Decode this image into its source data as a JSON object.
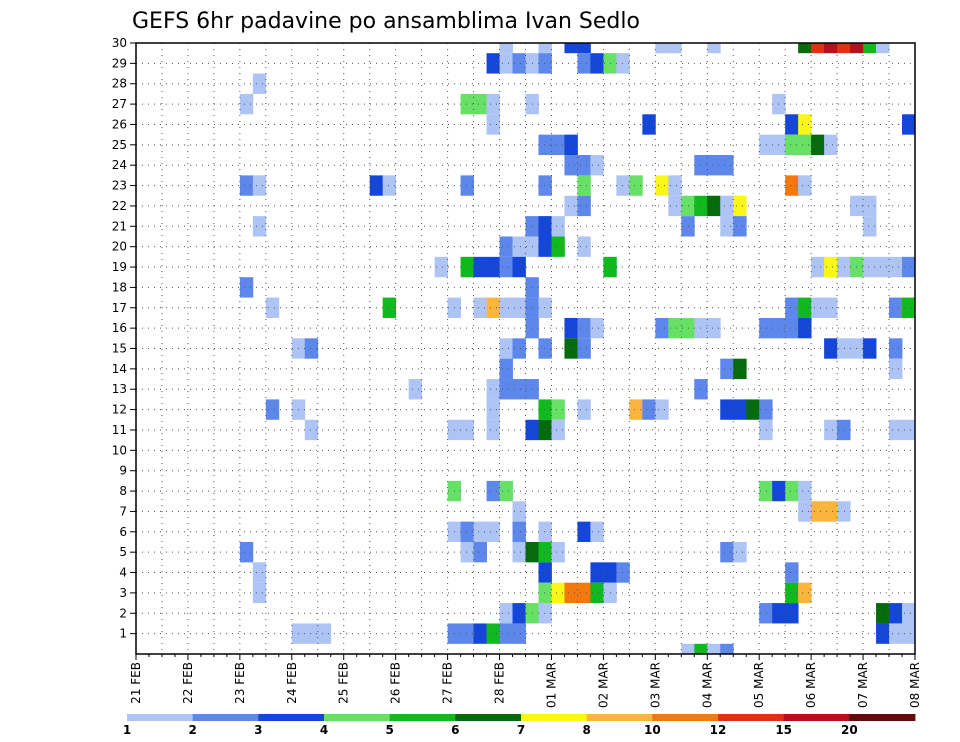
{
  "chart_data": {
    "type": "heatmap",
    "title": "GEFS 6hr padavine po ansamblima Ivan Sedlo",
    "xlabel": "",
    "ylabel": "",
    "x_tick_labels": [
      "21 FEB",
      "22 FEB",
      "23 FEB",
      "24 FEB",
      "25 FEB",
      "26 FEB",
      "27 FEB",
      "28 FEB",
      "01 MAR",
      "02 MAR",
      "03 MAR",
      "04 MAR",
      "05 MAR",
      "06 MAR",
      "07 MAR",
      "08 MAR"
    ],
    "y_tick_labels": [
      "1",
      "2",
      "3",
      "4",
      "5",
      "6",
      "7",
      "8",
      "9",
      "10",
      "11",
      "12",
      "13",
      "14",
      "15",
      "16",
      "17",
      "18",
      "19",
      "20",
      "21",
      "22",
      "23",
      "24",
      "25",
      "26",
      "27",
      "28",
      "29",
      "30"
    ],
    "x_unit": "6-hour step from 21 FEB 00",
    "x_range": [
      0,
      60
    ],
    "y_range": [
      1,
      30
    ],
    "grid": true,
    "color_scale": {
      "levels": [
        "1",
        "2",
        "3",
        "4",
        "5",
        "6",
        "7",
        "8",
        "10",
        "12",
        "15",
        "20"
      ],
      "colors": [
        "#adc4f5",
        "#5d87ea",
        "#1446d9",
        "#66e065",
        "#10b91d",
        "#056b0c",
        "#faf617",
        "#fbb43c",
        "#f3790e",
        "#dc3312",
        "#b5101e",
        "#640a0c"
      ]
    },
    "cells": [
      [
        28,
        30,
        0
      ],
      [
        31,
        30,
        0
      ],
      [
        33,
        30,
        2
      ],
      [
        34,
        30,
        2
      ],
      [
        40,
        30,
        0
      ],
      [
        41,
        30,
        0
      ],
      [
        44,
        30,
        0
      ],
      [
        51,
        30,
        5
      ],
      [
        52,
        30,
        9
      ],
      [
        53,
        30,
        10
      ],
      [
        54,
        30,
        9
      ],
      [
        55,
        30,
        10
      ],
      [
        56,
        30,
        4
      ],
      [
        57,
        30,
        0
      ],
      [
        27,
        29,
        2
      ],
      [
        28,
        29,
        0
      ],
      [
        29,
        29,
        1
      ],
      [
        30,
        29,
        0
      ],
      [
        31,
        29,
        1
      ],
      [
        34,
        29,
        1
      ],
      [
        35,
        29,
        2
      ],
      [
        36,
        29,
        3
      ],
      [
        37,
        29,
        0
      ],
      [
        9,
        28,
        0
      ],
      [
        8,
        27,
        0
      ],
      [
        25,
        27,
        3
      ],
      [
        26,
        27,
        3
      ],
      [
        27,
        27,
        0
      ],
      [
        30,
        27,
        0
      ],
      [
        49,
        27,
        0
      ],
      [
        27,
        26,
        0
      ],
      [
        39,
        26,
        2
      ],
      [
        50,
        26,
        2
      ],
      [
        51,
        26,
        6
      ],
      [
        59,
        26,
        2
      ],
      [
        31,
        25,
        1
      ],
      [
        32,
        25,
        1
      ],
      [
        33,
        25,
        2
      ],
      [
        48,
        25,
        0
      ],
      [
        49,
        25,
        0
      ],
      [
        50,
        25,
        3
      ],
      [
        51,
        25,
        3
      ],
      [
        52,
        25,
        5
      ],
      [
        53,
        25,
        0
      ],
      [
        33,
        24,
        1
      ],
      [
        34,
        24,
        1
      ],
      [
        35,
        24,
        0
      ],
      [
        43,
        24,
        1
      ],
      [
        44,
        24,
        1
      ],
      [
        45,
        24,
        1
      ],
      [
        8,
        23,
        1
      ],
      [
        9,
        23,
        0
      ],
      [
        18,
        23,
        2
      ],
      [
        19,
        23,
        0
      ],
      [
        25,
        23,
        1
      ],
      [
        31,
        23,
        1
      ],
      [
        34,
        23,
        3
      ],
      [
        37,
        23,
        0
      ],
      [
        38,
        23,
        3
      ],
      [
        40,
        23,
        6
      ],
      [
        41,
        23,
        0
      ],
      [
        50,
        23,
        8
      ],
      [
        51,
        23,
        0
      ],
      [
        33,
        22,
        0
      ],
      [
        34,
        22,
        1
      ],
      [
        41,
        22,
        0
      ],
      [
        42,
        22,
        3
      ],
      [
        43,
        22,
        4
      ],
      [
        44,
        22,
        5
      ],
      [
        45,
        22,
        0
      ],
      [
        46,
        22,
        6
      ],
      [
        55,
        22,
        0
      ],
      [
        56,
        22,
        0
      ],
      [
        9,
        21,
        0
      ],
      [
        30,
        21,
        1
      ],
      [
        31,
        21,
        2
      ],
      [
        32,
        21,
        0
      ],
      [
        42,
        21,
        1
      ],
      [
        45,
        21,
        0
      ],
      [
        46,
        21,
        1
      ],
      [
        56,
        21,
        0
      ],
      [
        28,
        20,
        1
      ],
      [
        29,
        20,
        0
      ],
      [
        30,
        20,
        0
      ],
      [
        31,
        20,
        2
      ],
      [
        32,
        20,
        4
      ],
      [
        34,
        20,
        0
      ],
      [
        23,
        19,
        0
      ],
      [
        25,
        19,
        4
      ],
      [
        26,
        19,
        2
      ],
      [
        27,
        19,
        2
      ],
      [
        28,
        19,
        1
      ],
      [
        29,
        19,
        2
      ],
      [
        36,
        19,
        4
      ],
      [
        52,
        19,
        0
      ],
      [
        53,
        19,
        6
      ],
      [
        54,
        19,
        0
      ],
      [
        55,
        19,
        3
      ],
      [
        56,
        19,
        0
      ],
      [
        57,
        19,
        0
      ],
      [
        58,
        19,
        0
      ],
      [
        59,
        19,
        1
      ],
      [
        8,
        18,
        1
      ],
      [
        30,
        18,
        1
      ],
      [
        10,
        17,
        0
      ],
      [
        19,
        17,
        4
      ],
      [
        24,
        17,
        0
      ],
      [
        26,
        17,
        0
      ],
      [
        27,
        17,
        7
      ],
      [
        28,
        17,
        0
      ],
      [
        29,
        17,
        0
      ],
      [
        30,
        17,
        1
      ],
      [
        31,
        17,
        0
      ],
      [
        50,
        17,
        1
      ],
      [
        51,
        17,
        4
      ],
      [
        52,
        17,
        0
      ],
      [
        53,
        17,
        0
      ],
      [
        58,
        17,
        1
      ],
      [
        59,
        17,
        4
      ],
      [
        30,
        16,
        1
      ],
      [
        33,
        16,
        2
      ],
      [
        34,
        16,
        1
      ],
      [
        35,
        16,
        0
      ],
      [
        40,
        16,
        1
      ],
      [
        41,
        16,
        3
      ],
      [
        42,
        16,
        3
      ],
      [
        43,
        16,
        0
      ],
      [
        44,
        16,
        0
      ],
      [
        48,
        16,
        1
      ],
      [
        49,
        16,
        1
      ],
      [
        50,
        16,
        1
      ],
      [
        51,
        16,
        2
      ],
      [
        12,
        15,
        0
      ],
      [
        13,
        15,
        1
      ],
      [
        28,
        15,
        0
      ],
      [
        29,
        15,
        1
      ],
      [
        31,
        15,
        1
      ],
      [
        33,
        15,
        5
      ],
      [
        34,
        15,
        1
      ],
      [
        53,
        15,
        2
      ],
      [
        54,
        15,
        0
      ],
      [
        55,
        15,
        0
      ],
      [
        56,
        15,
        2
      ],
      [
        58,
        15,
        1
      ],
      [
        28,
        14,
        1
      ],
      [
        45,
        14,
        1
      ],
      [
        46,
        14,
        5
      ],
      [
        58,
        14,
        0
      ],
      [
        21,
        13,
        0
      ],
      [
        27,
        13,
        0
      ],
      [
        28,
        13,
        1
      ],
      [
        29,
        13,
        1
      ],
      [
        30,
        13,
        1
      ],
      [
        43,
        13,
        1
      ],
      [
        10,
        12,
        1
      ],
      [
        12,
        12,
        0
      ],
      [
        27,
        12,
        0
      ],
      [
        31,
        12,
        4
      ],
      [
        32,
        12,
        3
      ],
      [
        34,
        12,
        0
      ],
      [
        38,
        12,
        7
      ],
      [
        39,
        12,
        1
      ],
      [
        40,
        12,
        0
      ],
      [
        45,
        12,
        2
      ],
      [
        46,
        12,
        2
      ],
      [
        47,
        12,
        5
      ],
      [
        48,
        12,
        1
      ],
      [
        13,
        11,
        0
      ],
      [
        24,
        11,
        0
      ],
      [
        25,
        11,
        0
      ],
      [
        27,
        11,
        0
      ],
      [
        30,
        11,
        2
      ],
      [
        31,
        11,
        5
      ],
      [
        32,
        11,
        0
      ],
      [
        48,
        11,
        0
      ],
      [
        53,
        11,
        0
      ],
      [
        54,
        11,
        1
      ],
      [
        58,
        11,
        0
      ],
      [
        59,
        11,
        0
      ],
      [
        24,
        8,
        3
      ],
      [
        27,
        8,
        1
      ],
      [
        28,
        8,
        3
      ],
      [
        48,
        8,
        3
      ],
      [
        49,
        8,
        2
      ],
      [
        50,
        8,
        3
      ],
      [
        51,
        8,
        0
      ],
      [
        29,
        7,
        0
      ],
      [
        51,
        7,
        0
      ],
      [
        52,
        7,
        7
      ],
      [
        53,
        7,
        7
      ],
      [
        54,
        7,
        0
      ],
      [
        24,
        6,
        0
      ],
      [
        25,
        6,
        1
      ],
      [
        26,
        6,
        0
      ],
      [
        27,
        6,
        0
      ],
      [
        29,
        6,
        1
      ],
      [
        31,
        6,
        0
      ],
      [
        34,
        6,
        2
      ],
      [
        35,
        6,
        0
      ],
      [
        8,
        5,
        1
      ],
      [
        25,
        5,
        0
      ],
      [
        26,
        5,
        1
      ],
      [
        29,
        5,
        0
      ],
      [
        30,
        5,
        5
      ],
      [
        31,
        5,
        4
      ],
      [
        32,
        5,
        0
      ],
      [
        45,
        5,
        1
      ],
      [
        46,
        5,
        0
      ],
      [
        9,
        4,
        0
      ],
      [
        31,
        4,
        2
      ],
      [
        35,
        4,
        2
      ],
      [
        36,
        4,
        2
      ],
      [
        37,
        4,
        1
      ],
      [
        50,
        4,
        1
      ],
      [
        9,
        3,
        0
      ],
      [
        31,
        3,
        3
      ],
      [
        32,
        3,
        6
      ],
      [
        33,
        3,
        8
      ],
      [
        34,
        3,
        8
      ],
      [
        35,
        3,
        4
      ],
      [
        36,
        3,
        0
      ],
      [
        50,
        3,
        4
      ],
      [
        51,
        3,
        7
      ],
      [
        28,
        2,
        0
      ],
      [
        29,
        2,
        2
      ],
      [
        30,
        2,
        3
      ],
      [
        31,
        2,
        0
      ],
      [
        48,
        2,
        1
      ],
      [
        49,
        2,
        2
      ],
      [
        50,
        2,
        2
      ],
      [
        57,
        2,
        5
      ],
      [
        58,
        2,
        2
      ],
      [
        59,
        2,
        0
      ],
      [
        12,
        1,
        0
      ],
      [
        13,
        1,
        0
      ],
      [
        14,
        1,
        0
      ],
      [
        24,
        1,
        1
      ],
      [
        25,
        1,
        1
      ],
      [
        26,
        1,
        2
      ],
      [
        27,
        1,
        4
      ],
      [
        28,
        1,
        1
      ],
      [
        29,
        1,
        1
      ],
      [
        57,
        1,
        2
      ],
      [
        58,
        1,
        0
      ],
      [
        59,
        1,
        0
      ],
      [
        42,
        0,
        0
      ],
      [
        43,
        0,
        4
      ],
      [
        44,
        0,
        0
      ],
      [
        45,
        0,
        1
      ]
    ]
  }
}
